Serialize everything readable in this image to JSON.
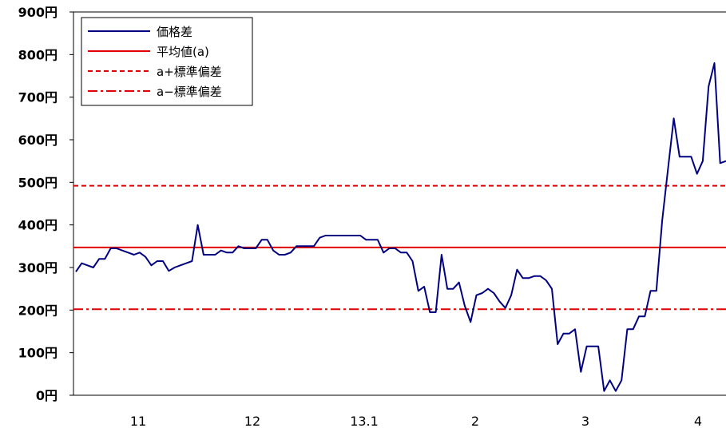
{
  "chart_data": {
    "type": "line",
    "title": "",
    "xlabel": "",
    "ylabel": "",
    "ylim": [
      0,
      900
    ],
    "yticks": [
      0,
      100,
      200,
      300,
      400,
      500,
      600,
      700,
      800,
      900
    ],
    "ytick_labels": [
      "0円",
      "100円",
      "200円",
      "300円",
      "400円",
      "500円",
      "600円",
      "700円",
      "800円",
      "900円"
    ],
    "xtick_labels": [
      "11",
      "12",
      "13.1",
      "2",
      "3",
      "4"
    ],
    "grid": false,
    "legend_position": "top-left",
    "legend": [
      {
        "label": "価格差",
        "color": "#000080",
        "style": "solid"
      },
      {
        "label": "平均値(a)",
        "color": "#e00000",
        "style": "solid"
      },
      {
        "label": "a+標準偏差",
        "color": "#e00000",
        "style": "dashed"
      },
      {
        "label": "a−標準偏差",
        "color": "#e00000",
        "style": "dashdot"
      }
    ],
    "series": [
      {
        "name": "価格差",
        "color": "#000080",
        "values": [
          290,
          310,
          305,
          300,
          320,
          320,
          345,
          345,
          340,
          335,
          330,
          335,
          325,
          305,
          315,
          315,
          292,
          300,
          305,
          310,
          315,
          400,
          330,
          330,
          330,
          340,
          335,
          335,
          350,
          345,
          345,
          345,
          365,
          365,
          340,
          330,
          330,
          335,
          350,
          350,
          350,
          350,
          370,
          375,
          375,
          375,
          375,
          375,
          375,
          375,
          365,
          365,
          365,
          335,
          345,
          345,
          335,
          335,
          315,
          245,
          255,
          195,
          195,
          330,
          250,
          250,
          265,
          210,
          172,
          235,
          240,
          250,
          240,
          220,
          205,
          235,
          295,
          275,
          275,
          280,
          280,
          270,
          250,
          120,
          145,
          145,
          155,
          55,
          115,
          115,
          115,
          10,
          35,
          10,
          35,
          155,
          155,
          185,
          185,
          245,
          245,
          410,
          530,
          650,
          560,
          560,
          560,
          520,
          550,
          725,
          780,
          545,
          550
        ]
      },
      {
        "name": "平均値(a)",
        "color": "#e00000",
        "values": [
          347
        ]
      },
      {
        "name": "a+標準偏差",
        "color": "#e00000",
        "values": [
          492
        ]
      },
      {
        "name": "a−標準偏差",
        "color": "#e00000",
        "values": [
          202
        ]
      }
    ]
  }
}
